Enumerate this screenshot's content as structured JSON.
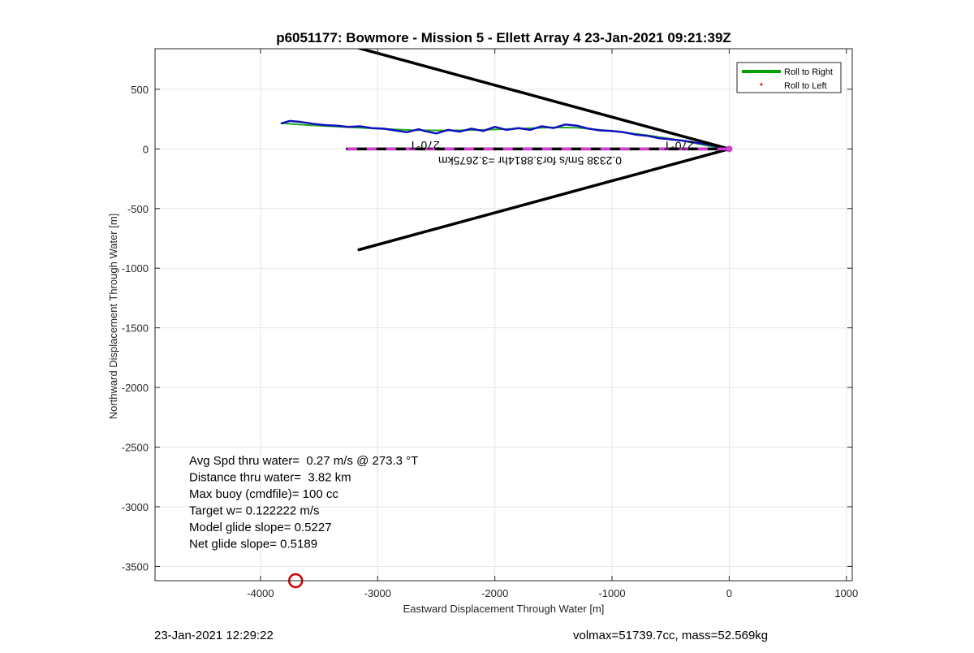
{
  "chart_data": {
    "type": "line",
    "title": "p6051177: Bowmore - Mission 5 - Ellett Array 4 23-Jan-2021 09:21:39Z",
    "xlabel": "Eastward Displacement Through Water [m]",
    "ylabel": "Northward Displacement Through Water [m]",
    "xlim": [
      -4900,
      1050
    ],
    "ylim": [
      -3620,
      840
    ],
    "xticks": [
      -4000,
      -3000,
      -2000,
      -1000,
      0,
      1000
    ],
    "yticks": [
      -3500,
      -3000,
      -2500,
      -2000,
      -1500,
      -1000,
      -500,
      0,
      500
    ],
    "grid": true,
    "legend_position": "top-right",
    "legend": [
      {
        "label": "Roll to Right",
        "color": "#00a000",
        "style": "line"
      },
      {
        "label": "Roll to Left",
        "color": "#ff0000",
        "style": "dot"
      }
    ],
    "series": [
      {
        "name": "Roll to Right",
        "color": "#22aa22",
        "width": 2,
        "x": [
          -3820,
          -3600,
          -3300,
          -3000,
          -2700,
          -2400,
          -2100,
          -1800,
          -1500,
          -1300,
          -1000,
          -700,
          -400,
          -200,
          0
        ],
        "y": [
          215,
          200,
          185,
          170,
          158,
          155,
          160,
          170,
          180,
          178,
          150,
          115,
          70,
          30,
          0
        ]
      },
      {
        "color": "#1010c0",
        "width": 2.5,
        "x": [
          -3820,
          -3750,
          -3650,
          -3550,
          -3450,
          -3350,
          -3250,
          -3150,
          -3050,
          -2950,
          -2850,
          -2750,
          -2650,
          -2600,
          -2500,
          -2400,
          -2300,
          -2200,
          -2100,
          -2000,
          -1900,
          -1800,
          -1700,
          -1600,
          -1500,
          -1400,
          -1300,
          -1200,
          -1100,
          -1000,
          -900,
          -800,
          -700,
          -600,
          -500,
          -400,
          -300,
          -200,
          -100,
          0
        ],
        "y": [
          215,
          235,
          225,
          210,
          200,
          195,
          185,
          190,
          175,
          170,
          155,
          140,
          165,
          150,
          130,
          160,
          145,
          170,
          150,
          185,
          160,
          175,
          160,
          190,
          175,
          205,
          195,
          170,
          155,
          150,
          140,
          120,
          110,
          90,
          80,
          70,
          55,
          40,
          20,
          0
        ]
      },
      {
        "color": "#000000",
        "width": 3.5,
        "x": [
          0,
          -3160
        ],
        "y": [
          0,
          845
        ]
      },
      {
        "color": "#000000",
        "width": 3.5,
        "x": [
          0,
          -3160
        ],
        "y": [
          0,
          -845
        ]
      },
      {
        "color": "#000000",
        "width": 3.5,
        "x": [
          -3260,
          0
        ],
        "y": [
          0,
          0
        ]
      },
      {
        "color": "#d43cd4",
        "width": 3.5,
        "dash": "12,12",
        "x": [
          -3260,
          0
        ],
        "y": [
          0,
          0
        ]
      }
    ],
    "markers": [
      {
        "x": 0,
        "y": 0,
        "color": "#d43cd4",
        "shape": "dot"
      },
      {
        "x": -3700,
        "y": -3620,
        "color": "#cc0000",
        "shape": "circle"
      }
    ],
    "flipped_annotations": [
      {
        "text": "270°T",
        "x": -2600,
        "y": 65
      },
      {
        "text": "270°T",
        "x": -430,
        "y": 60
      },
      {
        "text": "0.2338 5m/s for3.8814hr =3.2675km",
        "x": -1700,
        "y": -65
      }
    ],
    "stats": [
      "Avg Spd thru water=  0.27 m/s @ 273.3 °T",
      "Distance thru water=  3.82 km",
      "Max buoy (cmdfile)= 100 cc",
      "Target w= 0.122222 m/s",
      "Model glide slope= 0.5227",
      "Net glide slope= 0.5189"
    ]
  },
  "footer": {
    "timestamp": "23-Jan-2021 12:29:22",
    "info": "volmax=51739.7cc, mass=52.569kg"
  }
}
